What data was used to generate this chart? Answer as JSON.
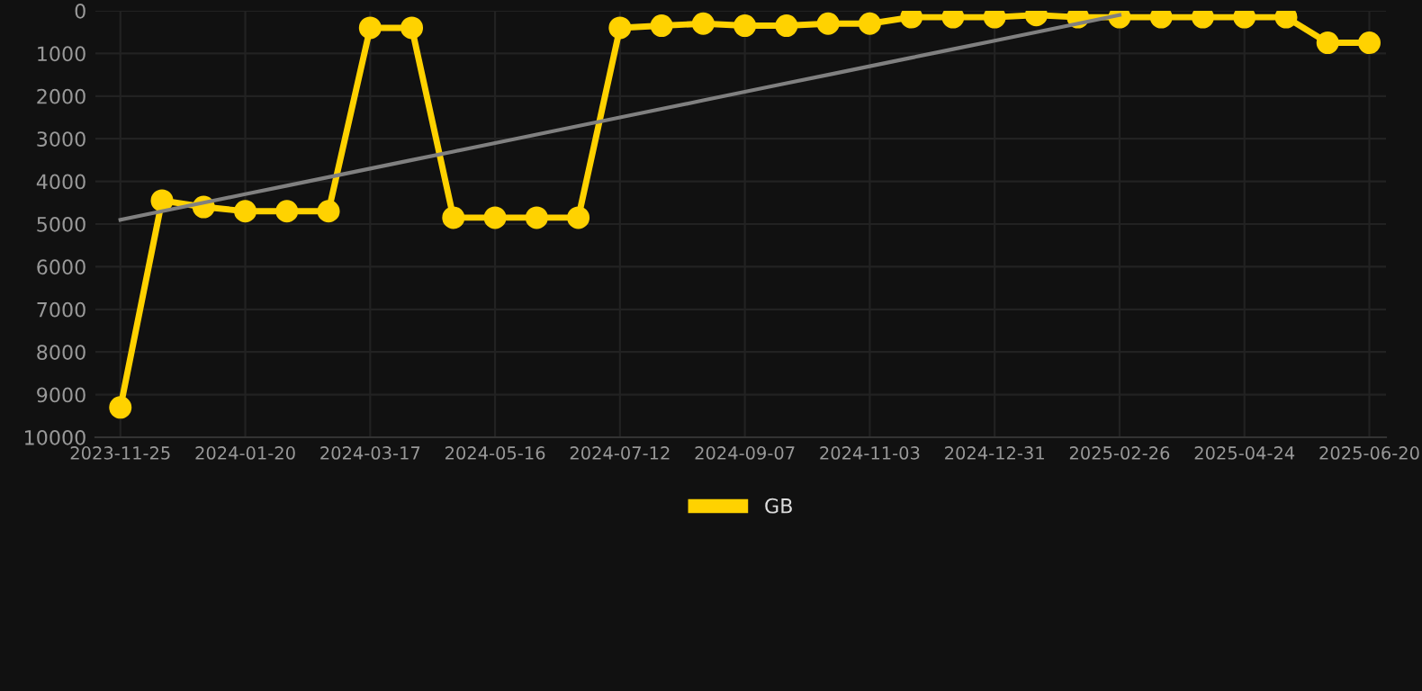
{
  "chart_data": {
    "type": "line",
    "categories": [
      "2023-11-25",
      null,
      null,
      "2024-01-20",
      null,
      null,
      "2024-03-17",
      null,
      null,
      "2024-05-16",
      null,
      null,
      "2024-07-12",
      null,
      null,
      "2024-09-07",
      null,
      null,
      "2024-11-03",
      null,
      null,
      "2024-12-31",
      null,
      null,
      "2025-02-26",
      null,
      null,
      "2025-04-24",
      null,
      null,
      "2025-06-20"
    ],
    "series": [
      {
        "name": "GB",
        "color": "#ffd200",
        "marker": "circle",
        "values": [
          9300,
          4450,
          4600,
          4700,
          4700,
          4700,
          400,
          400,
          4850,
          4850,
          4850,
          4850,
          400,
          350,
          300,
          350,
          350,
          300,
          300,
          150,
          150,
          150,
          100,
          150,
          150,
          150,
          150,
          150,
          150,
          750,
          750
        ]
      },
      {
        "type": "line",
        "color": "#808080",
        "marker": "none",
        "values": [
          4900,
          4700,
          4500,
          4300,
          4100,
          3900,
          3700,
          3500,
          3300,
          3100,
          2900,
          2700,
          2500,
          2300,
          2100,
          1900,
          1700,
          1500,
          1300,
          1100,
          900,
          700,
          500,
          300,
          100,
          null,
          null,
          null,
          null,
          null,
          null
        ]
      }
    ],
    "ylim": [
      10000,
      0
    ],
    "yticks": [
      0,
      1000,
      2000,
      3000,
      4000,
      5000,
      6000,
      7000,
      8000,
      9000,
      10000
    ],
    "grid": true,
    "legend": "bottom"
  }
}
